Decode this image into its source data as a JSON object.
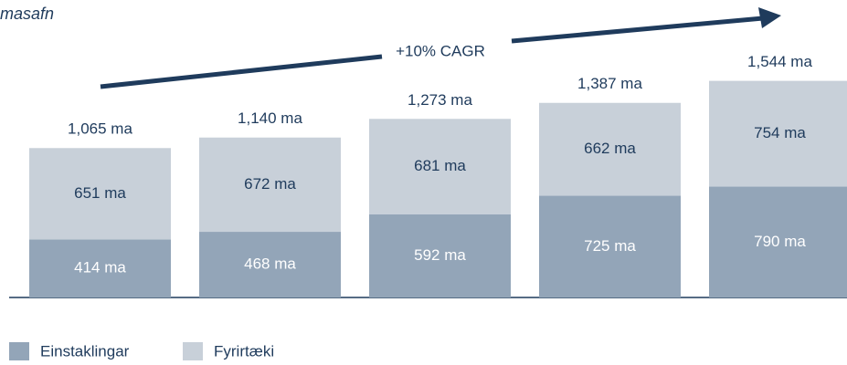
{
  "chart_data": {
    "type": "stacked_bar",
    "title": "masafn",
    "annotation": "+10% CAGR",
    "categories": [
      null,
      null,
      null,
      null,
      null
    ],
    "series": [
      {
        "name": "Einstaklingar",
        "color": "#93a5b8",
        "values": [
          414,
          468,
          592,
          725,
          790
        ],
        "value_labels": [
          "414 ma",
          "468 ma",
          "592 ma",
          "725 ma",
          "790 ma"
        ]
      },
      {
        "name": "Fyrirtæki",
        "color": "#c8d0d9",
        "values": [
          651,
          672,
          681,
          662,
          754
        ],
        "value_labels": [
          "651 ma",
          "672 ma",
          "681 ma",
          "662 ma",
          "754 ma"
        ]
      }
    ],
    "totals": [
      1065,
      1140,
      1273,
      1387,
      1544
    ],
    "total_labels": [
      "1,065 ma",
      "1,140 ma",
      "1,273 ma",
      "1,387 ma",
      "1,544 ma"
    ],
    "ylim": [
      0,
      1600
    ],
    "legend": "bottom-left"
  }
}
